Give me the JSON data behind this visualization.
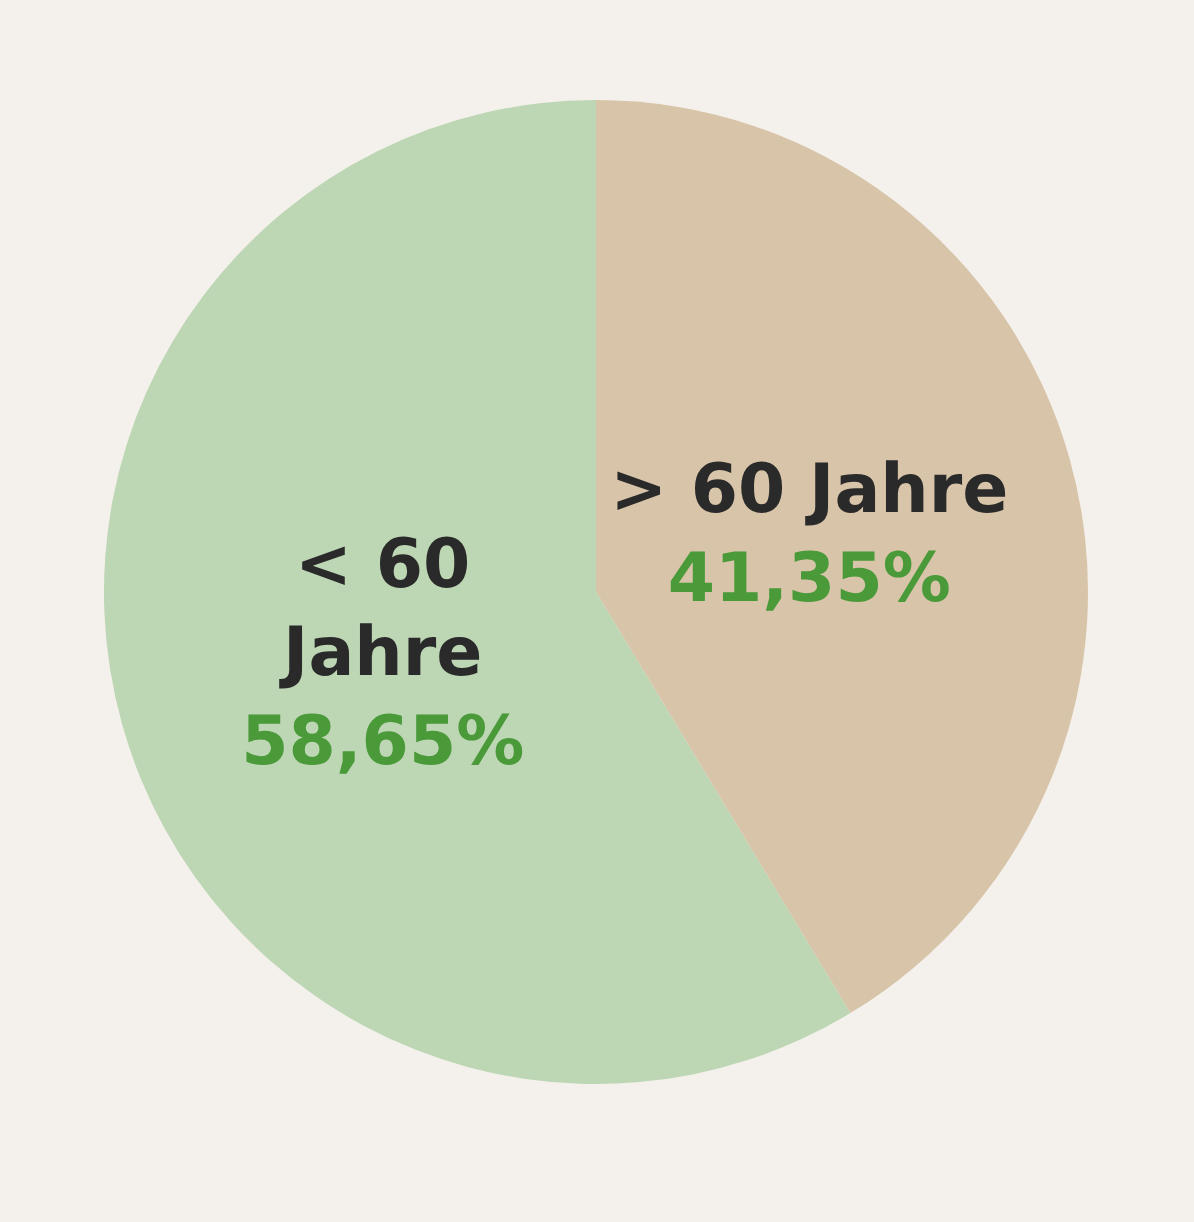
{
  "chart_data": {
    "type": "pie",
    "categories": [
      "> 60 Jahre",
      "< 60 Jahre"
    ],
    "values": [
      41.35,
      58.65
    ],
    "colors": [
      "#d8c4a8",
      "#bdd6b4"
    ],
    "value_labels": [
      "41,35%",
      "58,65%"
    ]
  }
}
